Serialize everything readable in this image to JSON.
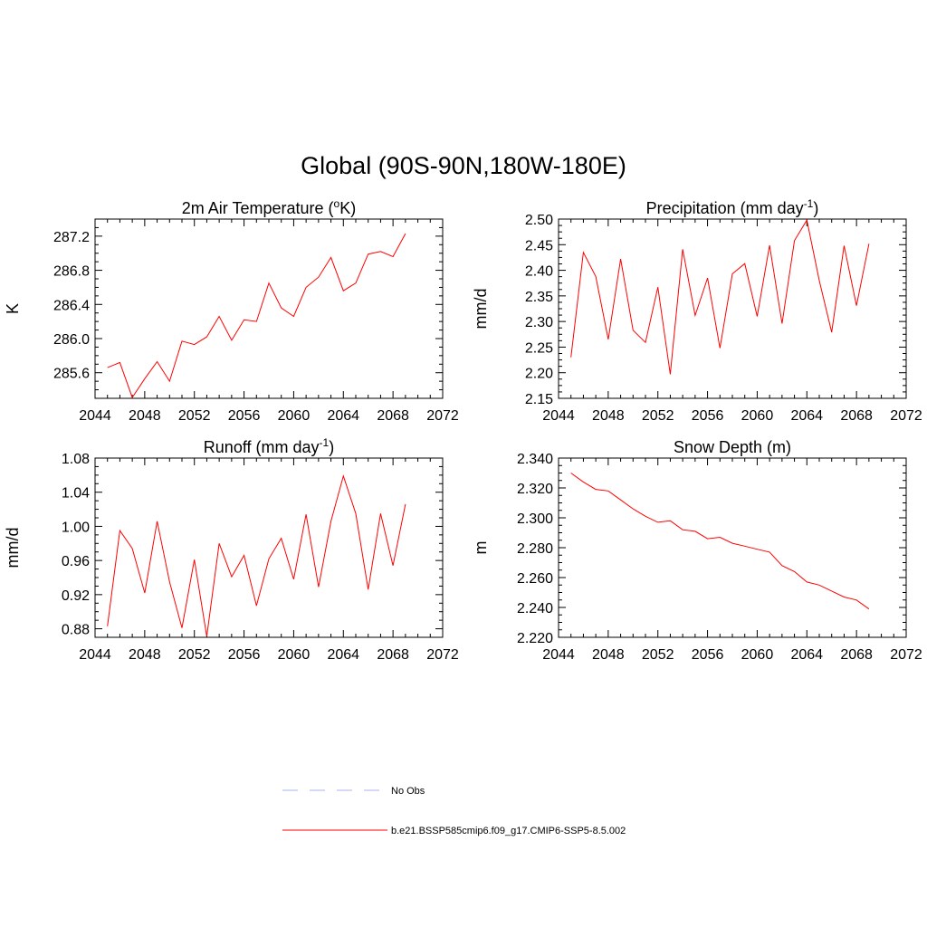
{
  "title": "Global (90S-90N,180W-180E)",
  "colors": {
    "model": "#ff0000",
    "obs": "#aab2f4",
    "axis": "#000000"
  },
  "legend": [
    {
      "label": "No Obs",
      "style": "dashed",
      "color": "#aab2f4"
    },
    {
      "label": "b.e21.BSSP585cmip6.f09_g17.CMIP6-SSP5-8.5.002",
      "style": "solid",
      "color": "#ff0000"
    }
  ],
  "panels": [
    {
      "title_main": "2m Air Temperature (",
      "title_sup": "o",
      "title_end": "K)"
    },
    {
      "title_main": "Precipitation (mm day",
      "title_sup": "-1",
      "title_end": ")"
    },
    {
      "title_main": "Runoff (mm day",
      "title_sup": "-1",
      "title_end": ")"
    },
    {
      "title_main": "Snow Depth (m)",
      "title_sup": "",
      "title_end": ""
    }
  ],
  "chart_data": [
    {
      "type": "line",
      "title": "2m Air Temperature (oK)",
      "xlabel": "",
      "ylabel": "K",
      "xlim": [
        2044,
        2072
      ],
      "ylim": [
        285.3,
        287.4
      ],
      "xticks": [
        2044,
        2048,
        2052,
        2056,
        2060,
        2064,
        2068,
        2072
      ],
      "yticks": [
        "285.6",
        "286.0",
        "286.4",
        "286.8",
        "287.2"
      ],
      "series": [
        {
          "x": [
            2045,
            2046,
            2047,
            2048,
            2049,
            2050,
            2051,
            2052,
            2053,
            2054,
            2055,
            2056,
            2057,
            2058,
            2059,
            2060,
            2061,
            2062,
            2063,
            2064,
            2065,
            2066,
            2067,
            2068,
            2069
          ],
          "y": [
            285.66,
            285.72,
            285.31,
            285.53,
            285.73,
            285.5,
            285.97,
            285.93,
            286.02,
            286.26,
            285.98,
            286.22,
            286.2,
            286.65,
            286.36,
            286.26,
            286.6,
            286.72,
            286.95,
            286.56,
            286.65,
            286.99,
            287.02,
            286.96,
            287.23
          ]
        }
      ]
    },
    {
      "type": "line",
      "title": "Precipitation (mm day-1)",
      "xlabel": "",
      "ylabel": "mm/d",
      "xlim": [
        2044,
        2072
      ],
      "ylim": [
        2.15,
        2.5
      ],
      "xticks": [
        2044,
        2048,
        2052,
        2056,
        2060,
        2064,
        2068,
        2072
      ],
      "yticks": [
        "2.15",
        "2.20",
        "2.25",
        "2.30",
        "2.35",
        "2.40",
        "2.45",
        "2.50"
      ],
      "series": [
        {
          "x": [
            2045,
            2046,
            2047,
            2048,
            2049,
            2050,
            2051,
            2052,
            2053,
            2054,
            2055,
            2056,
            2057,
            2058,
            2059,
            2060,
            2061,
            2062,
            2063,
            2064,
            2065,
            2066,
            2067,
            2068,
            2069
          ],
          "y": [
            2.23,
            2.435,
            2.388,
            2.265,
            2.422,
            2.283,
            2.259,
            2.367,
            2.197,
            2.441,
            2.312,
            2.385,
            2.248,
            2.393,
            2.413,
            2.31,
            2.449,
            2.296,
            2.458,
            2.498,
            2.38,
            2.279,
            2.448,
            2.331,
            2.452
          ]
        }
      ]
    },
    {
      "type": "line",
      "title": "Runoff (mm day-1)",
      "xlabel": "",
      "ylabel": "mm/d",
      "xlim": [
        2044,
        2072
      ],
      "ylim": [
        0.87,
        1.08
      ],
      "xticks": [
        2044,
        2048,
        2052,
        2056,
        2060,
        2064,
        2068,
        2072
      ],
      "yticks": [
        "0.88",
        "0.92",
        "0.96",
        "1.00",
        "1.04",
        "1.08"
      ],
      "series": [
        {
          "x": [
            2045,
            2046,
            2047,
            2048,
            2049,
            2050,
            2051,
            2052,
            2053,
            2054,
            2055,
            2056,
            2057,
            2058,
            2059,
            2060,
            2061,
            2062,
            2063,
            2064,
            2065,
            2066,
            2067,
            2068,
            2069
          ],
          "y": [
            0.883,
            0.995,
            0.974,
            0.922,
            1.006,
            0.935,
            0.881,
            0.961,
            0.871,
            0.98,
            0.941,
            0.966,
            0.907,
            0.962,
            0.986,
            0.938,
            1.014,
            0.929,
            1.006,
            1.059,
            1.015,
            0.926,
            1.015,
            0.954,
            1.026
          ]
        }
      ]
    },
    {
      "type": "line",
      "title": "Snow Depth (m)",
      "xlabel": "",
      "ylabel": "m",
      "xlim": [
        2044,
        2072
      ],
      "ylim": [
        2.22,
        2.34
      ],
      "xticks": [
        2044,
        2048,
        2052,
        2056,
        2060,
        2064,
        2068,
        2072
      ],
      "yticks": [
        "2.220",
        "2.240",
        "2.260",
        "2.280",
        "2.300",
        "2.320",
        "2.340"
      ],
      "series": [
        {
          "x": [
            2045,
            2046,
            2047,
            2048,
            2049,
            2050,
            2051,
            2052,
            2053,
            2054,
            2055,
            2056,
            2057,
            2058,
            2059,
            2060,
            2061,
            2062,
            2063,
            2064,
            2065,
            2066,
            2067,
            2068,
            2069
          ],
          "y": [
            2.33,
            2.324,
            2.319,
            2.318,
            2.312,
            2.306,
            2.301,
            2.297,
            2.298,
            2.292,
            2.291,
            2.286,
            2.287,
            2.283,
            2.281,
            2.279,
            2.277,
            2.268,
            2.264,
            2.257,
            2.255,
            2.251,
            2.247,
            2.245,
            2.239
          ]
        }
      ]
    }
  ]
}
